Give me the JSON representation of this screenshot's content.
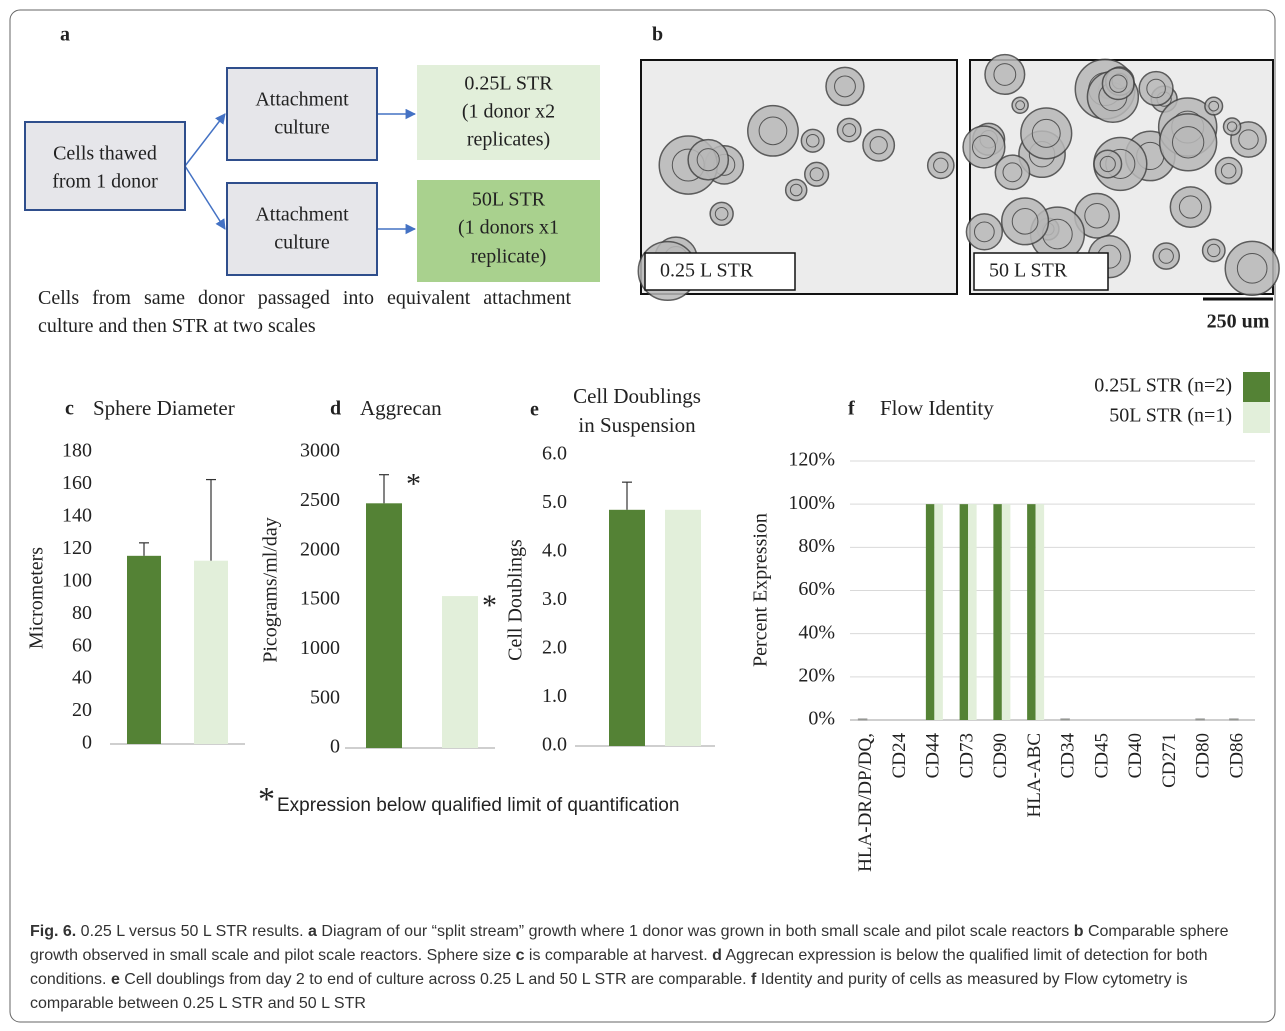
{
  "panel_a": {
    "label": "a",
    "nodes": [
      {
        "lines": [
          "Cells thawed",
          "from 1 donor"
        ]
      },
      {
        "lines": [
          "Attachment",
          "culture"
        ]
      },
      {
        "lines": [
          "Attachment",
          "culture"
        ]
      },
      {
        "lines": [
          "0.25L STR",
          "(1 donor x2",
          "replicates)"
        ]
      },
      {
        "lines": [
          "50L STR",
          "(1 donors x1",
          "replicate)"
        ]
      }
    ],
    "caption": "Cells from same donor passaged into equivalent attachment culture and then STR at two scales"
  },
  "panel_b": {
    "label": "b",
    "images": [
      {
        "label": "0.25 L STR"
      },
      {
        "label": "50 L STR"
      }
    ],
    "scale_bar": "250 um"
  },
  "chart_data": [
    {
      "type": "bar",
      "panel": "c",
      "title": "Sphere Diameter",
      "y_label": "Micrometers",
      "values": [
        116,
        113
      ],
      "errors": [
        8,
        50
      ],
      "colors": [
        "#548235",
        "#e2efda"
      ],
      "ylim": [
        0,
        180
      ],
      "yticks": [
        0,
        20,
        40,
        60,
        80,
        100,
        120,
        140,
        160,
        180
      ]
    },
    {
      "type": "bar",
      "panel": "d",
      "title": "Aggrecan",
      "y_label": "Picograms/ml/day",
      "values": [
        2480,
        1540
      ],
      "errors": [
        290,
        null
      ],
      "annotations": [
        "*",
        "*"
      ],
      "colors": [
        "#548235",
        "#e2efda"
      ],
      "ylim": [
        0,
        3000
      ],
      "yticks": [
        0,
        500,
        1000,
        1500,
        2000,
        2500,
        3000
      ]
    },
    {
      "type": "bar",
      "panel": "e",
      "title": [
        "Cell Doublings",
        "in Suspension"
      ],
      "y_label": "Cell Doublings",
      "values": [
        4.87,
        4.87
      ],
      "errors": [
        0.57,
        null
      ],
      "colors": [
        "#548235",
        "#e2efda"
      ],
      "ylim": [
        0,
        6
      ],
      "yticks": [
        {
          "value": 0,
          "label": "0.0"
        },
        {
          "value": 1,
          "label": "1.0"
        },
        {
          "value": 2,
          "label": "2.0"
        },
        {
          "value": 3,
          "label": "3.0"
        },
        {
          "value": 4,
          "label": "4.0"
        },
        {
          "value": 5,
          "label": "5.0"
        },
        {
          "value": 6,
          "label": "6.0"
        }
      ]
    },
    {
      "type": "grouped_bar",
      "panel": "f",
      "title": "Flow Identity",
      "y_label": "Percent Expression",
      "categories": [
        "HLA-DR/DP/DQ,",
        "CD24",
        "CD44",
        "CD73",
        "CD90",
        "HLA-ABC",
        "CD34",
        "CD45",
        "CD40",
        "CD271",
        "CD80",
        "CD86"
      ],
      "series": [
        {
          "name": "0.25L STR (n=2)",
          "color": "#548235",
          "values": [
            0.5,
            0,
            100,
            100,
            100,
            100,
            0.5,
            0,
            0,
            0,
            0.5,
            0.5
          ]
        },
        {
          "name": "50L STR (n=1)",
          "color": "#e2efda",
          "values": [
            0,
            0,
            100,
            100,
            100,
            100,
            0,
            0,
            0,
            0,
            0,
            0
          ]
        }
      ],
      "ylim": [
        0,
        120
      ],
      "yticks": [
        {
          "value": 0,
          "label": "0%"
        },
        {
          "value": 20,
          "label": "20%"
        },
        {
          "value": 40,
          "label": "40%"
        },
        {
          "value": 60,
          "label": "60%"
        },
        {
          "value": 80,
          "label": "80%"
        },
        {
          "value": 100,
          "label": "100%"
        },
        {
          "value": 120,
          "label": "120%"
        }
      ],
      "grid": true,
      "legend": "top-right"
    }
  ],
  "footnote": {
    "symbol": "*",
    "text": "Expression below qualified limit of quantification"
  },
  "caption": [
    {
      "text": "Fig. 6.",
      "bold": true
    },
    {
      "text": " 0.25 L versus 50 L STR results. ",
      "bold": false
    },
    {
      "text": "a",
      "bold": true
    },
    {
      "text": " Diagram of our “split stream” growth where 1 donor was grown in both small scale and pilot scale reactors ",
      "bold": false
    },
    {
      "text": "b",
      "bold": true
    },
    {
      "text": " Comparable sphere growth observed in small scale and pilot scale reactors. Sphere size ",
      "bold": false
    },
    {
      "text": "c",
      "bold": true
    },
    {
      "text": " is comparable at harvest. ",
      "bold": false
    },
    {
      "text": "d",
      "bold": true
    },
    {
      "text": " Aggrecan expression is below the qualified limit of detection for both conditions. ",
      "bold": false
    },
    {
      "text": "e",
      "bold": true
    },
    {
      "text": " Cell doublings from day 2 to end of culture across 0.25 L and 50 L STR are comparable. ",
      "bold": false
    },
    {
      "text": "f",
      "bold": true
    },
    {
      "text": " Identity and purity of cells as measured by Flow cytometry is comparable between 0.25 L STR and 50 L STR",
      "bold": false
    }
  ]
}
